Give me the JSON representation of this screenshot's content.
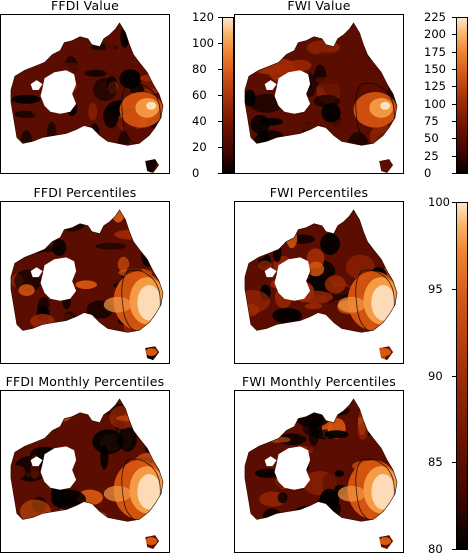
{
  "chart_data": [
    {
      "type": "heatmap",
      "title": "FFDI Value",
      "map": "Australia"
    },
    {
      "type": "heatmap",
      "title": "FWI Value",
      "map": "Australia"
    },
    {
      "type": "heatmap",
      "title": "FFDI Percentiles",
      "map": "Australia"
    },
    {
      "type": "heatmap",
      "title": "FWI Percentiles",
      "map": "Australia"
    },
    {
      "type": "heatmap",
      "title": "FFDI Monthly Percentiles",
      "map": "Australia"
    },
    {
      "type": "heatmap",
      "title": "FWI Monthly Percentiles",
      "map": "Australia"
    }
  ],
  "colorbars": {
    "ffdi": {
      "ticks": [
        "120",
        "100",
        "80",
        "60",
        "40",
        "20",
        "0"
      ],
      "range": [
        0,
        120
      ]
    },
    "fwi": {
      "ticks": [
        "225",
        "200",
        "175",
        "150",
        "125",
        "100",
        "75",
        "50",
        "25",
        "0"
      ],
      "range": [
        0,
        225
      ]
    },
    "percentiles": {
      "ticks": [
        "100",
        "95",
        "90",
        "85",
        "80"
      ],
      "range": [
        80,
        100
      ]
    }
  },
  "colors": {
    "low": "#000000",
    "mid_low": "#5a0d00",
    "mid": "#a02a05",
    "mid_high": "#d8570f",
    "high": "#f59a45",
    "top": "#fde2c2",
    "empty": "#ffffff"
  }
}
